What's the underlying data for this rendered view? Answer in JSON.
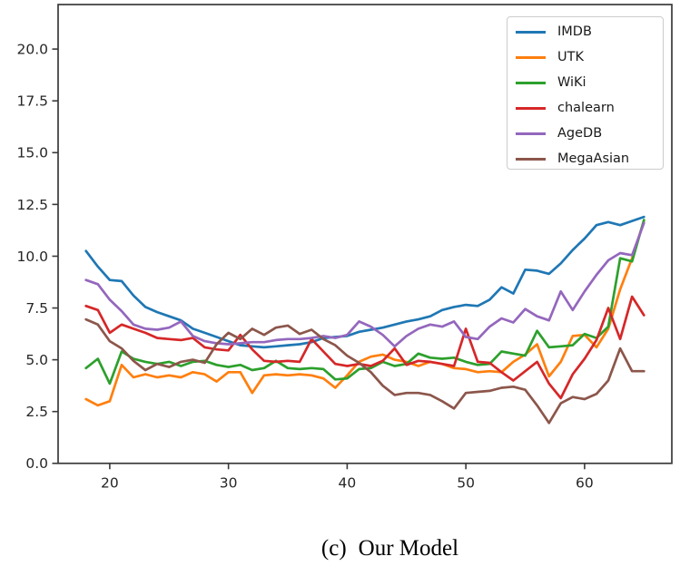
{
  "figure": {
    "background": "#ffffff",
    "caption": {
      "label": "(c)",
      "text": "Our Model"
    }
  },
  "chart_data": {
    "type": "line",
    "title": "",
    "xlabel": "",
    "ylabel": "",
    "grid": false,
    "legend_position": "upper right",
    "xlim": [
      15.65,
      67.35
    ],
    "ylim": [
      0,
      22.15
    ],
    "x_ticks": [
      20,
      30,
      40,
      50,
      60
    ],
    "y_ticks": [
      "0.0",
      "2.5",
      "5.0",
      "7.5",
      "10.0",
      "12.5",
      "15.0",
      "17.5",
      "20.0"
    ],
    "x_start": 18,
    "x_step": 1,
    "axis_color": "#3a3a3a",
    "tick_label_color": "#262626",
    "series": [
      {
        "name": "IMDB",
        "color": "#1f77b4",
        "values": [
          10.25,
          9.5,
          8.85,
          8.8,
          8.1,
          7.55,
          7.3,
          7.1,
          6.9,
          6.5,
          6.3,
          6.1,
          5.9,
          5.7,
          5.65,
          5.6,
          5.65,
          5.7,
          5.75,
          5.85,
          6.05,
          6.1,
          6.15,
          6.35,
          6.45,
          6.55,
          6.7,
          6.85,
          6.95,
          7.1,
          7.4,
          7.55,
          7.65,
          7.6,
          7.9,
          8.5,
          8.2,
          9.35,
          9.3,
          9.15,
          9.65,
          10.3,
          10.85,
          11.5,
          11.65,
          11.5,
          11.7,
          11.9
        ]
      },
      {
        "name": "UTK",
        "color": "#ff7f0e",
        "values": [
          3.1,
          2.8,
          3.0,
          4.75,
          4.15,
          4.3,
          4.15,
          4.25,
          4.15,
          4.4,
          4.3,
          3.95,
          4.4,
          4.4,
          3.4,
          4.25,
          4.3,
          4.25,
          4.3,
          4.25,
          4.1,
          3.65,
          4.25,
          4.9,
          5.15,
          5.25,
          5.0,
          4.9,
          4.7,
          4.9,
          4.8,
          4.6,
          4.55,
          4.4,
          4.45,
          4.4,
          4.9,
          5.25,
          5.75,
          4.2,
          4.9,
          6.15,
          6.2,
          5.6,
          6.5,
          8.4,
          9.9,
          11.7
        ]
      },
      {
        "name": "WiKi",
        "color": "#2ca02c",
        "values": [
          4.6,
          5.05,
          3.85,
          5.4,
          5.05,
          4.9,
          4.8,
          4.9,
          4.7,
          4.9,
          4.95,
          4.75,
          4.65,
          4.75,
          4.5,
          4.6,
          4.95,
          4.6,
          4.55,
          4.6,
          4.55,
          4.05,
          4.1,
          4.55,
          4.6,
          4.9,
          4.7,
          4.8,
          5.3,
          5.1,
          5.05,
          5.1,
          4.9,
          4.75,
          4.8,
          5.4,
          5.3,
          5.2,
          6.4,
          5.6,
          5.65,
          5.7,
          6.25,
          6.05,
          6.6,
          9.9,
          9.75,
          11.75
        ]
      },
      {
        "name": "chalearn",
        "color": "#d62728",
        "values": [
          7.6,
          7.4,
          6.3,
          6.7,
          6.5,
          6.3,
          6.05,
          6.0,
          5.95,
          6.05,
          5.6,
          5.5,
          5.45,
          6.2,
          5.5,
          4.95,
          4.9,
          4.95,
          4.9,
          6.0,
          5.4,
          4.8,
          4.7,
          4.8,
          4.7,
          4.95,
          5.55,
          4.75,
          4.95,
          4.9,
          4.8,
          4.7,
          6.5,
          4.9,
          4.85,
          4.4,
          4.0,
          4.45,
          4.9,
          3.85,
          3.15,
          4.3,
          5.05,
          5.95,
          7.5,
          6.0,
          8.05,
          7.15
        ]
      },
      {
        "name": "AgeDB",
        "color": "#9467bd",
        "values": [
          8.85,
          8.65,
          7.9,
          7.35,
          6.7,
          6.5,
          6.45,
          6.55,
          6.85,
          6.15,
          5.9,
          5.8,
          5.75,
          5.8,
          5.85,
          5.85,
          5.95,
          6.0,
          6.0,
          6.05,
          6.15,
          6.05,
          6.2,
          6.85,
          6.6,
          6.2,
          5.65,
          6.15,
          6.5,
          6.7,
          6.6,
          6.85,
          6.1,
          6.0,
          6.6,
          7.0,
          6.8,
          7.45,
          7.1,
          6.9,
          8.3,
          7.4,
          8.3,
          9.1,
          9.8,
          10.15,
          10.05,
          11.6
        ]
      },
      {
        "name": "MegaAsian",
        "color": "#8c564b",
        "values": [
          6.95,
          6.7,
          5.9,
          5.55,
          4.95,
          4.5,
          4.8,
          4.65,
          4.9,
          5.0,
          4.85,
          5.75,
          6.3,
          6.0,
          6.5,
          6.2,
          6.55,
          6.65,
          6.25,
          6.45,
          6.0,
          5.7,
          5.2,
          4.85,
          4.4,
          3.75,
          3.3,
          3.4,
          3.4,
          3.3,
          3.0,
          2.65,
          3.4,
          3.45,
          3.5,
          3.65,
          3.7,
          3.55,
          2.8,
          1.95,
          2.9,
          3.2,
          3.1,
          3.35,
          4.0,
          5.55,
          4.45,
          4.45
        ]
      }
    ]
  }
}
